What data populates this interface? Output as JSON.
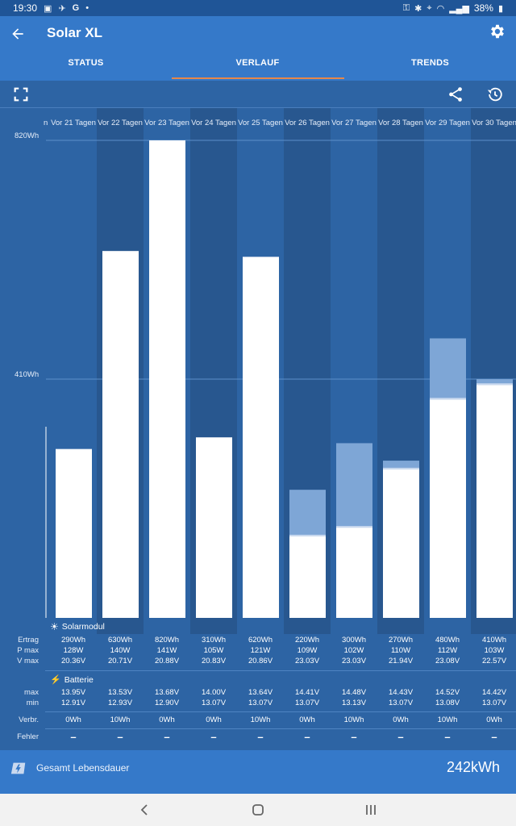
{
  "status_bar": {
    "time": "19:30",
    "battery": "38%",
    "google": "G"
  },
  "app": {
    "title": "Solar XL"
  },
  "tabs": [
    {
      "label": "STATUS"
    },
    {
      "label": "VERLAUF"
    },
    {
      "label": "TRENDS"
    }
  ],
  "colors": {
    "appbar": "#3579c9",
    "background": "#2d64a4",
    "stripe_dark": "#28578f",
    "bar_light": "#7ea6d6",
    "accent": "#e5874a"
  },
  "chart_data": {
    "type": "bar",
    "categories": [
      "Vor 21 Tagen",
      "Vor 22 Tagen",
      "Vor 23 Tagen",
      "Vor 24 Tagen",
      "Vor 25 Tagen",
      "Vor 26 Tagen",
      "Vor 27 Tagen",
      "Vor 28 Tagen",
      "Vor 29 Tagen",
      "Vor 30 Tagen"
    ],
    "partial_left_label": "n",
    "ylabels": [
      "820Wh",
      "410Wh"
    ],
    "ylim": [
      0,
      820
    ],
    "series": [
      {
        "values": [
          290,
          630,
          820,
          310,
          620,
          220,
          300,
          270,
          480,
          410
        ]
      }
    ],
    "lower_segment": [
      290,
      630,
      820,
      310,
      620,
      140,
      155,
      255,
      375,
      400
    ]
  },
  "table": {
    "solar_section": "Solarmodul",
    "battery_section": "Batterie",
    "labels": {
      "ertrag": "Ertrag",
      "pmax": "P max",
      "vmax": "V max",
      "max": "max",
      "min": "min",
      "verbr": "Verbr.",
      "fehler": "Fehler"
    },
    "ertrag": [
      "290Wh",
      "630Wh",
      "820Wh",
      "310Wh",
      "620Wh",
      "220Wh",
      "300Wh",
      "270Wh",
      "480Wh",
      "410Wh"
    ],
    "pmax": [
      "128W",
      "140W",
      "141W",
      "105W",
      "121W",
      "109W",
      "102W",
      "110W",
      "112W",
      "103W"
    ],
    "vmax": [
      "20.36V",
      "20.71V",
      "20.88V",
      "20.83V",
      "20.86V",
      "23.03V",
      "23.03V",
      "21.94V",
      "23.08V",
      "22.57V"
    ],
    "bat_max": [
      "13.95V",
      "13.53V",
      "13.68V",
      "14.00V",
      "13.64V",
      "14.41V",
      "14.48V",
      "14.43V",
      "14.52V",
      "14.42V"
    ],
    "bat_min": [
      "12.91V",
      "12.93V",
      "12.90V",
      "13.07V",
      "13.07V",
      "13.07V",
      "13.13V",
      "13.07V",
      "13.08V",
      "13.07V"
    ],
    "verbr": [
      "0Wh",
      "10Wh",
      "0Wh",
      "0Wh",
      "10Wh",
      "0Wh",
      "10Wh",
      "0Wh",
      "10Wh",
      "0Wh"
    ],
    "fehler": [
      "–",
      "–",
      "–",
      "–",
      "–",
      "–",
      "–",
      "–",
      "–",
      "–"
    ]
  },
  "footer": {
    "label": "Gesamt Lebensdauer",
    "value": "242kWh"
  }
}
